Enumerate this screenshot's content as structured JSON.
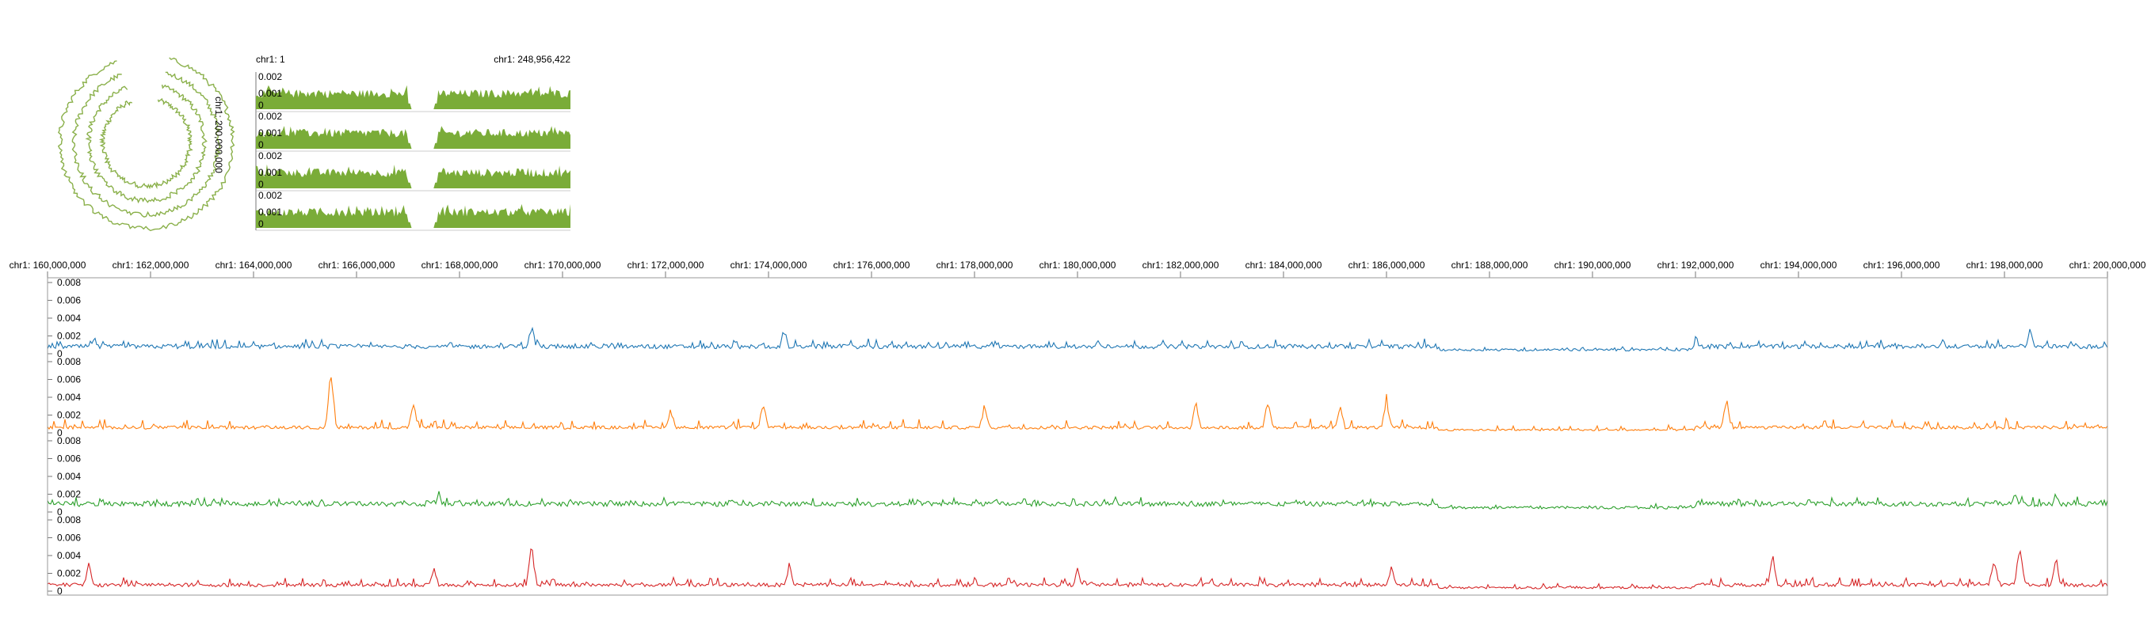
{
  "circular_view": {
    "label": "chr1: 200,000,000",
    "track_color": "#8ab04a",
    "rings": 4
  },
  "overview": {
    "start_label": "chr1: 1",
    "end_label": "chr1: 248,956,422",
    "fill_color": "#7aac38",
    "tick_labels": [
      "0.002",
      "0.001",
      "0"
    ],
    "tracks": 4,
    "gap_fraction": [
      0.49,
      0.57
    ]
  },
  "detail": {
    "axis_labels": [
      "chr1: 160,000,000",
      "chr1: 162,000,000",
      "chr1: 164,000,000",
      "chr1: 166,000,000",
      "chr1: 168,000,000",
      "chr1: 170,000,000",
      "chr1: 172,000,000",
      "chr1: 174,000,000",
      "chr1: 176,000,000",
      "chr1: 178,000,000",
      "chr1: 180,000,000",
      "chr1: 182,000,000",
      "chr1: 184,000,000",
      "chr1: 186,000,000",
      "chr1: 188,000,000",
      "chr1: 190,000,000",
      "chr1: 192,000,000",
      "chr1: 194,000,000",
      "chr1: 196,000,000",
      "chr1: 198,000,000",
      "chr1: 200,000,000"
    ],
    "tick_labels": [
      "0.008",
      "0.006",
      "0.004",
      "0.002",
      "0"
    ]
  },
  "chart_data": {
    "type": "line",
    "x_range": [
      160000000,
      200000000
    ],
    "ylim": [
      0,
      0.008
    ],
    "series": [
      {
        "color": "#1f77b4",
        "baseline": 0.0008,
        "noise": 0.0007,
        "peaks": [
          [
            160.9,
            0.0022
          ],
          [
            169.4,
            0.0038
          ],
          [
            174.3,
            0.0032
          ],
          [
            192.0,
            0.0024
          ],
          [
            198.5,
            0.0035
          ],
          [
            196.8,
            0.0018
          ],
          [
            180.4,
            0.0019
          ]
        ]
      },
      {
        "color": "#ff7f0e",
        "baseline": 0.0006,
        "noise": 0.0009,
        "peaks": [
          [
            165.5,
            0.0075
          ],
          [
            167.1,
            0.0038
          ],
          [
            172.1,
            0.003
          ],
          [
            173.9,
            0.0042
          ],
          [
            178.2,
            0.0038
          ],
          [
            182.3,
            0.0037
          ],
          [
            183.7,
            0.0043
          ],
          [
            186.0,
            0.0044
          ],
          [
            192.6,
            0.0042
          ],
          [
            185.1,
            0.0035
          ]
        ]
      },
      {
        "color": "#2ca02c",
        "baseline": 0.0009,
        "noise": 0.0006,
        "peaks": [
          [
            163.5,
            0.0018
          ],
          [
            167.6,
            0.0025
          ],
          [
            173.3,
            0.0018
          ],
          [
            186.2,
            0.0015
          ],
          [
            194.2,
            0.0017
          ],
          [
            198.2,
            0.0027
          ],
          [
            199.0,
            0.0023
          ]
        ]
      },
      {
        "color": "#d62728",
        "baseline": 0.0007,
        "noise": 0.0008,
        "peaks": [
          [
            160.8,
            0.0038
          ],
          [
            167.5,
            0.0034
          ],
          [
            169.4,
            0.0055
          ],
          [
            174.4,
            0.0035
          ],
          [
            180.0,
            0.0028
          ],
          [
            186.1,
            0.0031
          ],
          [
            193.5,
            0.0042
          ],
          [
            197.8,
            0.0045
          ],
          [
            198.3,
            0.0065
          ],
          [
            199.0,
            0.004
          ]
        ]
      }
    ]
  }
}
